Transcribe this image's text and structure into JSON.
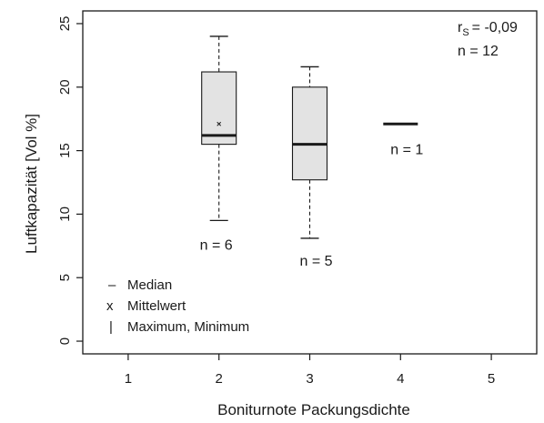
{
  "chart_data": {
    "type": "box",
    "xlabel": "Boniturnote Packungsdichte",
    "ylabel": "Luftkapazität [Vol %]",
    "xlim": [
      0.5,
      5.5
    ],
    "ylim": [
      -1,
      26
    ],
    "x_ticks": [
      "1",
      "2",
      "3",
      "4",
      "5"
    ],
    "y_ticks": [
      "0",
      "5",
      "10",
      "15",
      "20",
      "25"
    ],
    "boxes": [
      {
        "x": 2,
        "min": 9.5,
        "q1": 15.5,
        "median": 16.2,
        "q3": 21.2,
        "max": 24.0,
        "mean": 17.1,
        "n_label": "n = 6"
      },
      {
        "x": 3,
        "min": 8.1,
        "q1": 12.7,
        "median": 15.5,
        "q3": 20.0,
        "max": 21.6,
        "mean": null,
        "n_label": "n = 5"
      },
      {
        "x": 4,
        "min": 17.1,
        "q1": 17.1,
        "median": 17.1,
        "q3": 17.1,
        "max": 17.1,
        "mean": null,
        "n_label": "n = 1"
      }
    ],
    "stats": {
      "rs_prefix": "r",
      "rs_sub": "S",
      "rs_value": "= -0,09",
      "n_total": "n = 12"
    },
    "legend": [
      {
        "symbol": "–",
        "label": "Median"
      },
      {
        "symbol": "x",
        "label": "Mittelwert"
      },
      {
        "symbol": "|",
        "label": "Maximum, Minimum"
      }
    ],
    "colors": {
      "box_fill": "#e3e3e3",
      "line": "#1a1a1a",
      "grid": "none"
    }
  }
}
